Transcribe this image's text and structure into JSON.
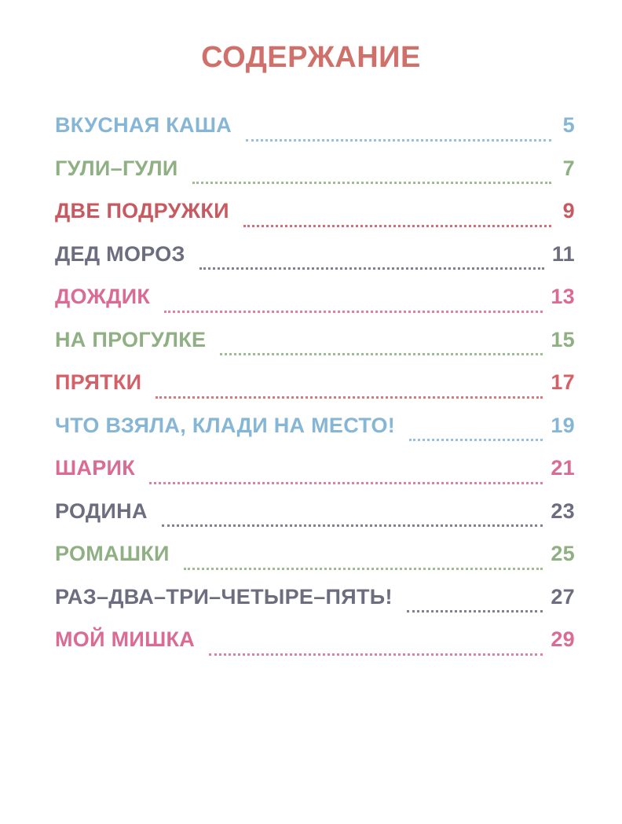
{
  "title": "СОДЕРЖАНИЕ",
  "colors": {
    "title": "#d0706a",
    "blue": "#86b6d6",
    "green": "#8fb083",
    "red": "#c75960",
    "slate": "#6c6d7e",
    "pink": "#d96b94"
  },
  "toc": [
    {
      "title": "ВКУСНАЯ КАША",
      "page": "5",
      "color": "#86b6d6"
    },
    {
      "title": "ГУЛИ–ГУЛИ",
      "page": "7",
      "color": "#8fb083"
    },
    {
      "title": "ДВЕ ПОДРУЖКИ",
      "page": "9",
      "color": "#c75960"
    },
    {
      "title": "ДЕД МОРОЗ",
      "page": "11",
      "color": "#6c6d7e"
    },
    {
      "title": "ДОЖДИК",
      "page": "13",
      "color": "#d96b94"
    },
    {
      "title": "НА ПРОГУЛКЕ",
      "page": "15",
      "color": "#8fb083"
    },
    {
      "title": "ПРЯТКИ",
      "page": "17",
      "color": "#d46167"
    },
    {
      "title": "ЧТО ВЗЯЛА, КЛАДИ НА МЕСТО!",
      "page": "19",
      "color": "#86b6d6"
    },
    {
      "title": "ШАРИК",
      "page": "21",
      "color": "#d96b94"
    },
    {
      "title": "РОДИНА",
      "page": "23",
      "color": "#6c6d7e"
    },
    {
      "title": "РОМАШКИ",
      "page": "25",
      "color": "#8fb083"
    },
    {
      "title": "РАЗ–ДВА–ТРИ–ЧЕТЫРЕ–ПЯТЬ!",
      "page": "27",
      "color": "#6c6d7e"
    },
    {
      "title": "МОЙ МИШКА",
      "page": "29",
      "color": "#d96b94"
    }
  ]
}
